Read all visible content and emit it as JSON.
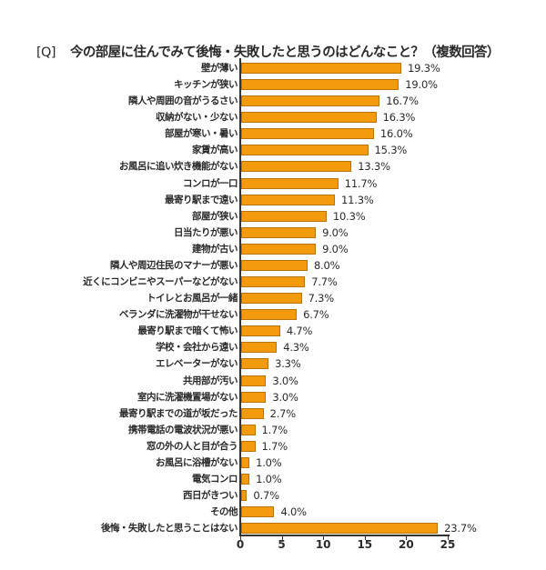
{
  "title": {
    "prefix": "[Q]",
    "text": "今の部屋に住んでみて後悔・失敗したと思うのはどんなこと？（複数回答）"
  },
  "colors": {
    "bar": "#f39a0d",
    "bar_border": "#b8740a",
    "axis": "#333333",
    "text": "#2a2a2a"
  },
  "chart_data": {
    "type": "bar",
    "orientation": "horizontal",
    "title": "[Q] 今の部屋に住んでみて後悔・失敗したと思うのはどんなこと？（複数回答）",
    "xlabel": "",
    "ylabel": "",
    "xlim": [
      0,
      25
    ],
    "xticks": [
      0,
      5,
      10,
      15,
      20,
      25
    ],
    "grid": false,
    "legend": null,
    "unit": "%",
    "categories": [
      "壁が薄い",
      "キッチンが狭い",
      "隣人や周囲の音がうるさい",
      "収納がない・少ない",
      "部屋が寒い・暑い",
      "家賃が高い",
      "お風呂に追い炊き機能がない",
      "コンロが一口",
      "最寄り駅まで遠い",
      "部屋が狭い",
      "日当たりが悪い",
      "建物が古い",
      "隣人や周辺住民のマナーが悪い",
      "近くにコンビニやスーパーなどがない",
      "トイレとお風呂が一緒",
      "ベランダに洗濯物が干せない",
      "最寄り駅まで暗くて怖い",
      "学校・会社から遠い",
      "エレベーターがない",
      "共用部が汚い",
      "室内に洗濯機置場がない",
      "最寄り駅までの道が坂だった",
      "携帯電話の電波状況が悪い",
      "窓の外の人と目が合う",
      "お風呂に浴槽がない",
      "電気コンロ",
      "西日がきつい",
      "その他",
      "後悔・失敗したと思うことはない"
    ],
    "values": [
      19.3,
      19.0,
      16.7,
      16.3,
      16.0,
      15.3,
      13.3,
      11.7,
      11.3,
      10.3,
      9.0,
      9.0,
      8.0,
      7.7,
      7.3,
      6.7,
      4.7,
      4.3,
      3.3,
      3.0,
      3.0,
      2.7,
      1.7,
      1.7,
      1.0,
      1.0,
      0.7,
      4.0,
      23.7
    ],
    "value_labels": [
      "19.3%",
      "19.0%",
      "16.7%",
      "16.3%",
      "16.0%",
      "15.3%",
      "13.3%",
      "11.7%",
      "11.3%",
      "10.3%",
      "9.0%",
      "9.0%",
      "8.0%",
      "7.7%",
      "7.3%",
      "6.7%",
      "4.7%",
      "4.3%",
      "3.3%",
      "3.0%",
      "3.0%",
      "2.7%",
      "1.7%",
      "1.7%",
      "1.0%",
      "1.0%",
      "0.7%",
      "4.0%",
      "23.7%"
    ]
  }
}
